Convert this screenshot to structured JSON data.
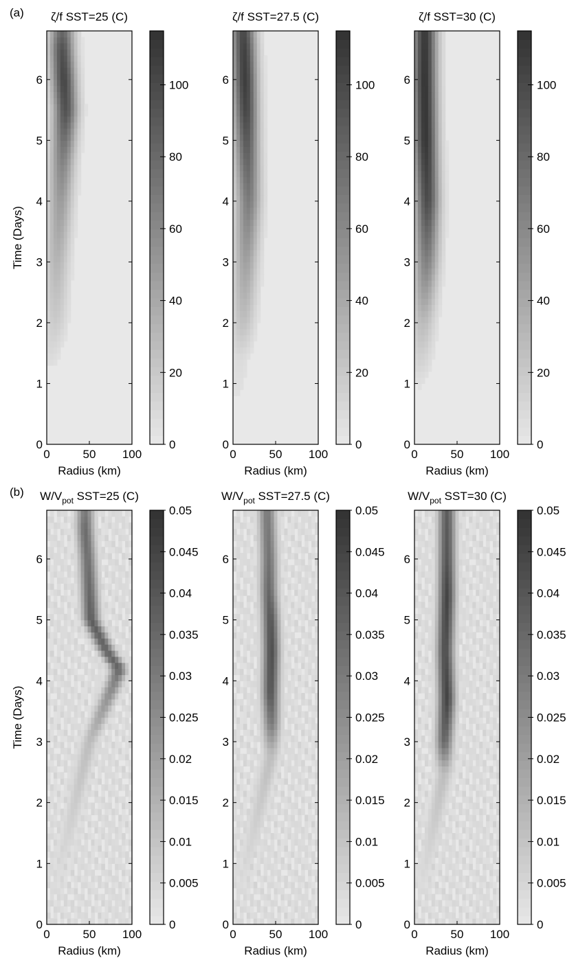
{
  "figure": {
    "labels": [
      "(a)",
      "(b)"
    ]
  },
  "chart_data": [
    {
      "type": "heatmap",
      "group": "(a)",
      "title": "ζ/f SST=25 (C)",
      "xlabel": "Radius (km)",
      "ylabel": "Time (Days)",
      "xlim": [
        0,
        100
      ],
      "ylim": [
        0,
        6.8
      ],
      "xticks": [
        "0",
        "50",
        "100"
      ],
      "yticks": [
        "0",
        "1",
        "2",
        "3",
        "4",
        "5",
        "6"
      ],
      "colorbar": {
        "min": 0,
        "max": 115,
        "ticks": [
          "0",
          "20",
          "40",
          "60",
          "80",
          "100"
        ]
      },
      "ridge": [
        [
          0,
          0,
          0
        ],
        [
          1,
          0,
          0
        ],
        [
          2,
          10,
          18
        ],
        [
          3,
          12,
          32
        ],
        [
          4,
          16,
          48
        ],
        [
          4.6,
          18,
          62
        ],
        [
          5,
          20,
          75
        ],
        [
          5.5,
          22,
          95
        ],
        [
          6,
          20,
          102
        ],
        [
          6.5,
          18,
          95
        ],
        [
          6.8,
          18,
          80
        ]
      ]
    },
    {
      "type": "heatmap",
      "group": "(a)",
      "title": "ζ/f SST=27.5 (C)",
      "xlabel": "Radius (km)",
      "ylabel": "",
      "xlim": [
        0,
        100
      ],
      "ylim": [
        0,
        6.8
      ],
      "xticks": [
        "0",
        "50",
        "100"
      ],
      "yticks": [
        "0",
        "1",
        "2",
        "3",
        "4",
        "5",
        "6"
      ],
      "colorbar": {
        "min": 0,
        "max": 115,
        "ticks": [
          "0",
          "20",
          "40",
          "60",
          "80",
          "100"
        ]
      },
      "ridge": [
        [
          0,
          0,
          0
        ],
        [
          1.4,
          8,
          8
        ],
        [
          2,
          12,
          25
        ],
        [
          3,
          15,
          45
        ],
        [
          4,
          18,
          68
        ],
        [
          5,
          16,
          90
        ],
        [
          5.5,
          15,
          102
        ],
        [
          6,
          14,
          108
        ],
        [
          6.5,
          13,
          105
        ],
        [
          6.8,
          12,
          100
        ]
      ]
    },
    {
      "type": "heatmap",
      "group": "(a)",
      "title": "ζ/f SST=30 (C)",
      "xlabel": "Radius (km)",
      "ylabel": "",
      "xlim": [
        0,
        100
      ],
      "ylim": [
        0,
        6.8
      ],
      "xticks": [
        "0",
        "50",
        "100"
      ],
      "yticks": [
        "0",
        "1",
        "2",
        "3",
        "4",
        "5",
        "6"
      ],
      "colorbar": {
        "min": 0,
        "max": 115,
        "ticks": [
          "0",
          "20",
          "40",
          "60",
          "80",
          "100"
        ]
      },
      "ridge": [
        [
          0,
          0,
          0
        ],
        [
          1,
          5,
          5
        ],
        [
          2,
          10,
          28
        ],
        [
          3,
          14,
          65
        ],
        [
          4,
          15,
          98
        ],
        [
          5,
          13,
          112
        ],
        [
          6,
          12,
          113
        ],
        [
          6.8,
          12,
          110
        ]
      ]
    },
    {
      "type": "heatmap",
      "group": "(b)",
      "title_main": "W/V",
      "title_sub": "pot",
      "title_rest": " SST=25 (C)",
      "xlabel": "Radius (km)",
      "ylabel": "Time (Days)",
      "xlim": [
        0,
        100
      ],
      "ylim": [
        0,
        6.8
      ],
      "xticks": [
        "0",
        "50",
        "100"
      ],
      "yticks": [
        "0",
        "1",
        "2",
        "3",
        "4",
        "5",
        "6"
      ],
      "colorbar": {
        "min": 0,
        "max": 0.05,
        "ticks": [
          "0",
          "0.005",
          "0.01",
          "0.015",
          "0.02",
          "0.025",
          "0.03",
          "0.035",
          "0.04",
          "0.045",
          "0.05"
        ]
      },
      "ridge": [
        [
          0,
          0,
          0
        ],
        [
          3,
          50,
          0.012
        ],
        [
          4,
          80,
          0.028
        ],
        [
          4.2,
          85,
          0.036
        ],
        [
          4.5,
          70,
          0.036
        ],
        [
          5,
          52,
          0.038
        ],
        [
          5.5,
          50,
          0.035
        ],
        [
          6,
          48,
          0.033
        ],
        [
          6.5,
          45,
          0.034
        ],
        [
          6.8,
          45,
          0.03
        ]
      ]
    },
    {
      "type": "heatmap",
      "group": "(b)",
      "title_main": "W/V",
      "title_sub": "pot",
      "title_rest": " SST=27.5 (C)",
      "xlabel": "Radius (km)",
      "ylabel": "",
      "xlim": [
        0,
        100
      ],
      "ylim": [
        0,
        6.8
      ],
      "xticks": [
        "0",
        "50",
        "100"
      ],
      "yticks": [
        "0",
        "1",
        "2",
        "3",
        "4",
        "5",
        "6"
      ],
      "colorbar": {
        "min": 0,
        "max": 0.05,
        "ticks": [
          "0",
          "0.005",
          "0.01",
          "0.015",
          "0.02",
          "0.025",
          "0.03",
          "0.035",
          "0.04",
          "0.045",
          "0.05"
        ]
      },
      "ridge": [
        [
          0,
          0,
          0
        ],
        [
          2.8,
          45,
          0.012
        ],
        [
          3.3,
          45,
          0.03
        ],
        [
          3.8,
          44,
          0.04
        ],
        [
          4.5,
          45,
          0.042
        ],
        [
          5,
          44,
          0.04
        ],
        [
          5.5,
          42,
          0.035
        ],
        [
          6,
          42,
          0.032
        ],
        [
          6.8,
          40,
          0.03
        ]
      ]
    },
    {
      "type": "heatmap",
      "group": "(b)",
      "title_main": "W/V",
      "title_sub": "pot",
      "title_rest": " SST=30 (C)",
      "xlabel": "Radius (km)",
      "ylabel": "",
      "xlim": [
        0,
        100
      ],
      "ylim": [
        0,
        6.8
      ],
      "xticks": [
        "0",
        "50",
        "100"
      ],
      "yticks": [
        "0",
        "1",
        "2",
        "3",
        "4",
        "5",
        "6"
      ],
      "colorbar": {
        "min": 0,
        "max": 0.05,
        "ticks": [
          "0",
          "0.005",
          "0.01",
          "0.015",
          "0.02",
          "0.025",
          "0.03",
          "0.035",
          "0.04",
          "0.045",
          "0.05"
        ]
      },
      "ridge": [
        [
          0,
          0,
          0
        ],
        [
          2.5,
          35,
          0.012
        ],
        [
          3,
          35,
          0.035
        ],
        [
          3.7,
          38,
          0.045
        ],
        [
          4.5,
          36,
          0.042
        ],
        [
          5.4,
          38,
          0.045
        ],
        [
          6,
          38,
          0.04
        ],
        [
          6.8,
          38,
          0.038
        ]
      ]
    }
  ]
}
